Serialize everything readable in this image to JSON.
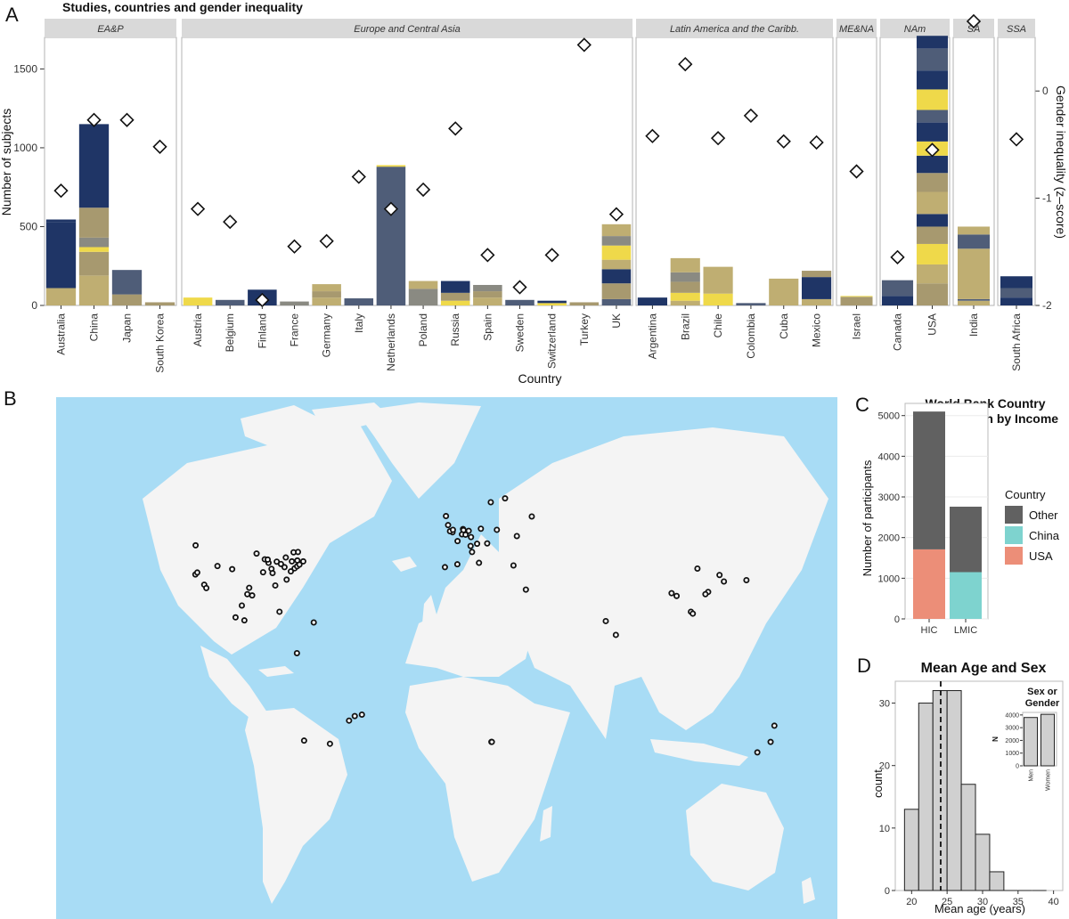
{
  "panels": {
    "a": {
      "letter": "A",
      "title": "Studies, countries and gender inequality"
    },
    "b": {
      "letter": "B"
    },
    "c": {
      "letter": "C",
      "title": [
        "World Bank Country",
        "Classification by Income"
      ]
    },
    "d": {
      "letter": "D",
      "title": "Mean Age and Sex",
      "inset_title": [
        "Sex or",
        "Gender"
      ]
    }
  },
  "colors": {
    "navy": "#1f3566",
    "slate": "#4f5d78",
    "khaki": "#bfae72",
    "olive": "#a7996f",
    "gray": "#8a8a82",
    "yellow": "#efd94a",
    "ocean": "#a8dcf5",
    "land": "#f4f4f4",
    "strip": "#d9d9d9",
    "other": "#616161",
    "china": "#7ed3cf",
    "usa": "#ec8e78",
    "hist": "#d0d0d0"
  },
  "chart_data": [
    {
      "id": "A",
      "type": "bar",
      "title": "Studies, countries and gender inequality",
      "xlabel": "Country",
      "ylabel": "Number of subjects",
      "y2label": "Gender inequality (z–score)",
      "ylim": [
        0,
        1700
      ],
      "y_ticks": [
        0,
        500,
        1000,
        1500
      ],
      "y2lim": [
        -2.0,
        0.5
      ],
      "y2_ticks": [
        0,
        -1,
        -2
      ],
      "stacked_segments": "each bar is a stack of individual studies; segment colors encode study",
      "regions": [
        {
          "name": "EA&P",
          "countries": [
            {
              "name": "Australia",
              "total": 545,
              "z": -0.93,
              "segs": [
                [
                  110,
                  "khaki"
                ],
                [
                  420,
                  "navy"
                ],
                [
                  15,
                  "navy"
                ]
              ]
            },
            {
              "name": "China",
              "total": 1150,
              "z": -0.27,
              "segs": [
                [
                  190,
                  "khaki"
                ],
                [
                  150,
                  "olive"
                ],
                [
                  30,
                  "yellow"
                ],
                [
                  60,
                  "gray"
                ],
                [
                  190,
                  "olive"
                ],
                [
                  530,
                  "navy"
                ]
              ]
            },
            {
              "name": "Japan",
              "total": 225,
              "z": -0.27,
              "segs": [
                [
                  70,
                  "olive"
                ],
                [
                  155,
                  "slate"
                ]
              ]
            },
            {
              "name": "South Korea",
              "total": 20,
              "z": -0.52,
              "segs": [
                [
                  20,
                  "olive"
                ]
              ]
            }
          ]
        },
        {
          "name": "Europe and Central Asia",
          "countries": [
            {
              "name": "Austria",
              "total": 50,
              "z": -1.1,
              "segs": [
                [
                  50,
                  "yellow"
                ]
              ]
            },
            {
              "name": "Belgium",
              "total": 35,
              "z": -1.22,
              "segs": [
                [
                  35,
                  "slate"
                ]
              ]
            },
            {
              "name": "Finland",
              "total": 100,
              "z": -1.95,
              "segs": [
                [
                  100,
                  "navy"
                ]
              ]
            },
            {
              "name": "France",
              "total": 25,
              "z": -1.45,
              "segs": [
                [
                  25,
                  "gray"
                ]
              ]
            },
            {
              "name": "Germany",
              "total": 135,
              "z": -1.4,
              "segs": [
                [
                  50,
                  "khaki"
                ],
                [
                  40,
                  "olive"
                ],
                [
                  45,
                  "khaki"
                ]
              ]
            },
            {
              "name": "Italy",
              "total": 45,
              "z": -0.8,
              "segs": [
                [
                  45,
                  "slate"
                ]
              ]
            },
            {
              "name": "Netherlands",
              "total": 890,
              "z": -1.1,
              "segs": [
                [
                  880,
                  "slate"
                ],
                [
                  10,
                  "yellow"
                ]
              ]
            },
            {
              "name": "Poland",
              "total": 155,
              "z": -0.92,
              "segs": [
                [
                  105,
                  "gray"
                ],
                [
                  50,
                  "khaki"
                ]
              ]
            },
            {
              "name": "Russia",
              "total": 155,
              "z": -0.35,
              "segs": [
                [
                  30,
                  "yellow"
                ],
                [
                  50,
                  "olive"
                ],
                [
                  75,
                  "navy"
                ]
              ]
            },
            {
              "name": "Spain",
              "total": 130,
              "z": -1.53,
              "segs": [
                [
                  50,
                  "khaki"
                ],
                [
                  40,
                  "olive"
                ],
                [
                  40,
                  "gray"
                ]
              ]
            },
            {
              "name": "Sweden",
              "total": 35,
              "z": -1.83,
              "segs": [
                [
                  35,
                  "slate"
                ]
              ]
            },
            {
              "name": "Switzerland",
              "total": 30,
              "z": -1.53,
              "segs": [
                [
                  15,
                  "yellow"
                ],
                [
                  15,
                  "navy"
                ]
              ]
            },
            {
              "name": "Turkey",
              "total": 20,
              "z": 0.43,
              "segs": [
                [
                  20,
                  "olive"
                ]
              ]
            },
            {
              "name": "UK",
              "total": 515,
              "z": -1.15,
              "segs": [
                [
                  40,
                  "slate"
                ],
                [
                  100,
                  "olive"
                ],
                [
                  90,
                  "navy"
                ],
                [
                  60,
                  "khaki"
                ],
                [
                  90,
                  "yellow"
                ],
                [
                  60,
                  "gray"
                ],
                [
                  75,
                  "khaki"
                ]
              ]
            }
          ]
        },
        {
          "name": "Latin America and the Caribb.",
          "countries": [
            {
              "name": "Argentina",
              "total": 50,
              "z": -0.42,
              "segs": [
                [
                  50,
                  "navy"
                ]
              ]
            },
            {
              "name": "Brazil",
              "total": 300,
              "z": 0.25,
              "segs": [
                [
                  30,
                  "khaki"
                ],
                [
                  50,
                  "yellow"
                ],
                [
                  70,
                  "olive"
                ],
                [
                  60,
                  "gray"
                ],
                [
                  90,
                  "khaki"
                ]
              ]
            },
            {
              "name": "Chile",
              "total": 245,
              "z": -0.44,
              "segs": [
                [
                  75,
                  "yellow"
                ],
                [
                  170,
                  "khaki"
                ]
              ]
            },
            {
              "name": "Colombia",
              "total": 15,
              "z": -0.23,
              "segs": [
                [
                  15,
                  "slate"
                ]
              ]
            },
            {
              "name": "Cuba",
              "total": 170,
              "z": -0.47,
              "segs": [
                [
                  170,
                  "khaki"
                ]
              ]
            },
            {
              "name": "Mexico",
              "total": 220,
              "z": -0.48,
              "segs": [
                [
                  40,
                  "khaki"
                ],
                [
                  140,
                  "navy"
                ],
                [
                  40,
                  "olive"
                ]
              ]
            }
          ]
        },
        {
          "name": "ME&NA",
          "countries": [
            {
              "name": "Israel",
              "total": 60,
              "z": -0.75,
              "segs": [
                [
                  55,
                  "olive"
                ],
                [
                  5,
                  "yellow"
                ]
              ]
            }
          ]
        },
        {
          "name": "NAm",
          "countries": [
            {
              "name": "Canada",
              "total": 160,
              "z": -1.55,
              "segs": [
                [
                  60,
                  "navy"
                ],
                [
                  100,
                  "slate"
                ]
              ]
            },
            {
              "name": "USA",
              "total": 1710,
              "z": -0.55,
              "segs": [
                [
                  140,
                  "olive"
                ],
                [
                  120,
                  "khaki"
                ],
                [
                  130,
                  "yellow"
                ],
                [
                  110,
                  "olive"
                ],
                [
                  80,
                  "navy"
                ],
                [
                  140,
                  "khaki"
                ],
                [
                  120,
                  "olive"
                ],
                [
                  110,
                  "navy"
                ],
                [
                  90,
                  "yellow"
                ],
                [
                  120,
                  "navy"
                ],
                [
                  80,
                  "slate"
                ],
                [
                  130,
                  "yellow"
                ],
                [
                  120,
                  "navy"
                ],
                [
                  140,
                  "slate"
                ],
                [
                  80,
                  "navy"
                ]
              ]
            }
          ]
        },
        {
          "name": "SA",
          "countries": [
            {
              "name": "India",
              "total": 500,
              "z": 0.65,
              "segs": [
                [
                  30,
                  "khaki"
                ],
                [
                  10,
                  "slate"
                ],
                [
                  320,
                  "khaki"
                ],
                [
                  90,
                  "slate"
                ],
                [
                  50,
                  "khaki"
                ]
              ]
            }
          ]
        },
        {
          "name": "SSA",
          "countries": [
            {
              "name": "South Africa",
              "total": 185,
              "z": -0.45,
              "segs": [
                [
                  50,
                  "navy"
                ],
                [
                  60,
                  "slate"
                ],
                [
                  75,
                  "navy"
                ]
              ]
            }
          ]
        }
      ]
    },
    {
      "id": "B",
      "type": "scatter",
      "description_map": "world map (Mercator-like) with study locations marked as circles",
      "points": [
        [
          -122.4,
          37.8
        ],
        [
          -121.5,
          38.5
        ],
        [
          -118.2,
          34.0
        ],
        [
          -117.2,
          32.7
        ],
        [
          -122.3,
          47.6
        ],
        [
          -111.9,
          40.8
        ],
        [
          -104.9,
          39.7
        ],
        [
          -97.7,
          30.3
        ],
        [
          -93.3,
          45.0
        ],
        [
          -87.6,
          41.9
        ],
        [
          -86.2,
          39.8
        ],
        [
          -84.4,
          33.7
        ],
        [
          -83.7,
          42.3
        ],
        [
          -81.7,
          41.5
        ],
        [
          -80.0,
          40.4
        ],
        [
          -79.0,
          35.9
        ],
        [
          -77.0,
          38.9
        ],
        [
          -75.2,
          40.0
        ],
        [
          -74.0,
          40.7
        ],
        [
          -73.9,
          42.7
        ],
        [
          -72.9,
          41.3
        ],
        [
          -71.1,
          42.4
        ],
        [
          -76.5,
          42.4
        ],
        [
          -79.4,
          43.7
        ],
        [
          -73.6,
          45.5
        ],
        [
          -89.4,
          43.1
        ],
        [
          -90.2,
          38.6
        ],
        [
          -95.4,
          29.8
        ],
        [
          -96.8,
          32.8
        ],
        [
          -88.0,
          43.0
        ],
        [
          -85.7,
          38.3
        ],
        [
          -75.7,
          45.4
        ],
        [
          -99.1,
          19.4
        ],
        [
          -100.3,
          25.7
        ],
        [
          -103.3,
          20.7
        ],
        [
          -82.4,
          23.1
        ],
        [
          -66.1,
          18.5
        ],
        [
          -74.1,
          4.7
        ],
        [
          -58.4,
          -34.6
        ],
        [
          -70.7,
          -33.4
        ],
        [
          -49.3,
          -25.4
        ],
        [
          -46.6,
          -23.5
        ],
        [
          -43.2,
          -22.9
        ],
        [
          -0.1,
          51.5
        ],
        [
          -1.3,
          51.8
        ],
        [
          -2.2,
          53.5
        ],
        [
          -3.2,
          55.9
        ],
        [
          0.1,
          52.2
        ],
        [
          4.9,
          52.4
        ],
        [
          5.1,
          52.1
        ],
        [
          4.4,
          50.9
        ],
        [
          6.1,
          50.8
        ],
        [
          7.6,
          51.9
        ],
        [
          8.7,
          50.1
        ],
        [
          13.4,
          52.5
        ],
        [
          11.6,
          48.1
        ],
        [
          9.2,
          45.5
        ],
        [
          12.5,
          41.9
        ],
        [
          16.4,
          48.2
        ],
        [
          8.5,
          47.4
        ],
        [
          -3.7,
          40.4
        ],
        [
          2.2,
          41.4
        ],
        [
          2.3,
          48.9
        ],
        [
          18.1,
          59.3
        ],
        [
          24.9,
          60.2
        ],
        [
          21.0,
          52.2
        ],
        [
          37.6,
          55.8
        ],
        [
          28.9,
          41.0
        ],
        [
          34.8,
          32.1
        ],
        [
          30.5,
          50.4
        ],
        [
          72.8,
          19.1
        ],
        [
          77.6,
          13.0
        ],
        [
          18.4,
          -33.9
        ],
        [
          18.6,
          -33.9
        ],
        [
          116.4,
          39.9
        ],
        [
          121.5,
          31.2
        ],
        [
          120.2,
          30.3
        ],
        [
          113.3,
          23.1
        ],
        [
          114.2,
          22.3
        ],
        [
          104.1,
          30.7
        ],
        [
          106.5,
          29.6
        ],
        [
          126.9,
          37.6
        ],
        [
          129.0,
          35.2
        ],
        [
          139.7,
          35.7
        ],
        [
          151.2,
          -33.9
        ],
        [
          153.0,
          -27.5
        ],
        [
          144.9,
          -37.8
        ]
      ]
    },
    {
      "id": "C",
      "type": "bar",
      "title": "World Bank Country Classification by Income",
      "categories": [
        "HIC",
        "LMIC"
      ],
      "ylabel": "Number of participants",
      "ylim": [
        0,
        5300
      ],
      "y_ticks": [
        0,
        1000,
        2000,
        3000,
        4000,
        5000
      ],
      "legend_title": "Country",
      "series": [
        {
          "name": "Other",
          "values": [
            3390,
            1610
          ],
          "color": "other"
        },
        {
          "name": "China",
          "values": [
            0,
            1150
          ],
          "color": "china"
        },
        {
          "name": "USA",
          "values": [
            1710,
            0
          ],
          "color": "usa"
        }
      ]
    },
    {
      "id": "D",
      "type": "bar",
      "title": "Mean Age and Sex",
      "xlabel": "Mean age (years)",
      "ylabel": "count",
      "xlim": [
        17.7,
        41.3
      ],
      "ylim": [
        0,
        33.5
      ],
      "x_ticks": [
        20,
        25,
        30,
        35,
        40
      ],
      "y_ticks": [
        0,
        10,
        20,
        30
      ],
      "bin_start": 19.0,
      "bin_width": 2.0,
      "counts": [
        13,
        30,
        32,
        32,
        17,
        9,
        3,
        0,
        0,
        0
      ],
      "mean_line": 24.1,
      "inset": {
        "title": "Sex or Gender",
        "ylabel": "N",
        "categories": [
          "Men",
          "Women"
        ],
        "values": [
          3800,
          4050
        ],
        "ylim": [
          0,
          4200
        ],
        "y_ticks": [
          0,
          1000,
          2000,
          3000,
          4000
        ]
      }
    }
  ]
}
